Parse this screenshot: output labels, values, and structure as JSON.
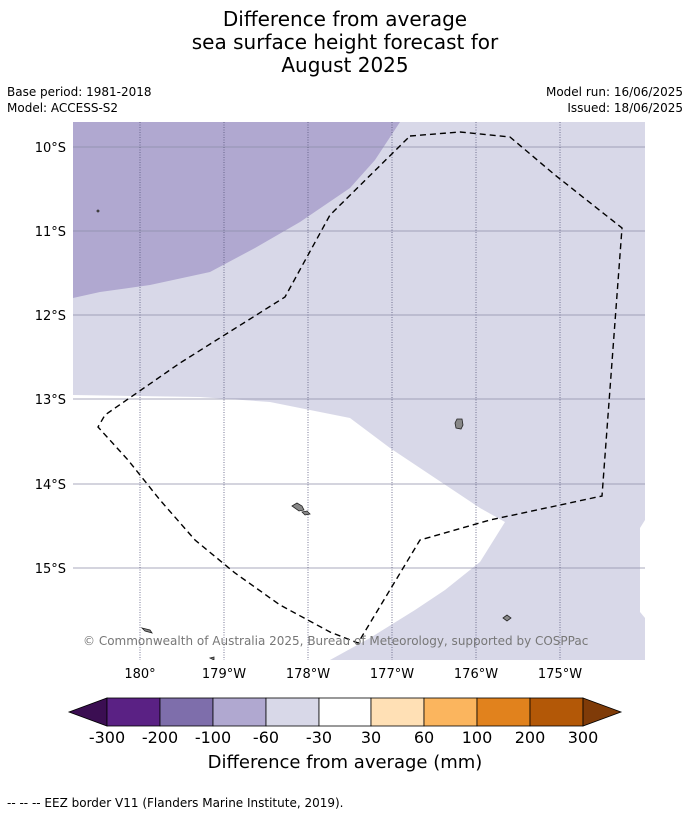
{
  "title": {
    "line1": "Difference from average",
    "line2": "sea surface height forecast for",
    "line3": "August 2025"
  },
  "meta": {
    "base_period": "Base period: 1981-2018",
    "model": "Model: ACCESS-S2",
    "model_run": "Model run: 16/06/2025",
    "issued": "Issued: 18/06/2025"
  },
  "map": {
    "lat_labels": [
      "10°S",
      "11°S",
      "12°S",
      "13°S",
      "14°S",
      "15°S"
    ],
    "lon_labels": [
      "180°",
      "179°W",
      "178°W",
      "177°W",
      "176°W",
      "175°W"
    ],
    "copyright": "© Commonwealth of Australia 2025, Bureau of Meteorology, supported by COSPPac",
    "colors": {
      "class_minus100_minus60": "#b0a8d0",
      "class_minus60_minus30": "#d8d8e8",
      "class_minus30_30": "#ffffff",
      "land": "#888888",
      "eez_border": "#000000"
    }
  },
  "colorbar": {
    "ticks": [
      "-300",
      "-200",
      "-100",
      "-60",
      "-30",
      "30",
      "60",
      "100",
      "200",
      "300"
    ],
    "colors": {
      "under": "#3b0e52",
      "c1": "#5a2184",
      "c2": "#7e6eab",
      "c3": "#b0a8d0",
      "c4": "#d8d8e8",
      "c5": "#ffffff",
      "c6": "#ffe0b5",
      "c7": "#fbb55e",
      "c8": "#e1821d",
      "c9": "#b35807",
      "over": "#7f3b08"
    },
    "label": "Difference from average (mm)"
  },
  "footnote": "--  --  -- EEZ border V11 (Flanders Marine Institute, 2019)."
}
